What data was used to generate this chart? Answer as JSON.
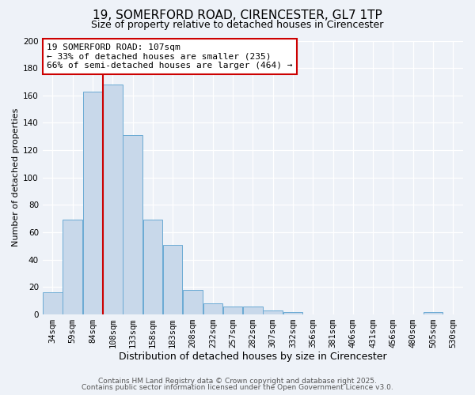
{
  "title": "19, SOMERFORD ROAD, CIRENCESTER, GL7 1TP",
  "subtitle": "Size of property relative to detached houses in Cirencester",
  "xlabel": "Distribution of detached houses by size in Cirencester",
  "ylabel": "Number of detached properties",
  "bar_labels": [
    "34sqm",
    "59sqm",
    "84sqm",
    "108sqm",
    "133sqm",
    "158sqm",
    "183sqm",
    "208sqm",
    "232sqm",
    "257sqm",
    "282sqm",
    "307sqm",
    "332sqm",
    "356sqm",
    "381sqm",
    "406sqm",
    "431sqm",
    "456sqm",
    "480sqm",
    "505sqm",
    "530sqm"
  ],
  "bar_values": [
    16,
    69,
    163,
    168,
    131,
    69,
    51,
    18,
    8,
    6,
    6,
    3,
    2,
    0,
    0,
    0,
    0,
    0,
    0,
    2,
    0
  ],
  "bar_color": "#c8d8ea",
  "bar_edge_color": "#6aaad4",
  "vline_x": 3.0,
  "vline_color": "#cc0000",
  "annotation_title": "19 SOMERFORD ROAD: 107sqm",
  "annotation_line1": "← 33% of detached houses are smaller (235)",
  "annotation_line2": "66% of semi-detached houses are larger (464) →",
  "annotation_box_color": "#ffffff",
  "annotation_box_edge": "#cc0000",
  "ylim": [
    0,
    200
  ],
  "yticks": [
    0,
    20,
    40,
    60,
    80,
    100,
    120,
    140,
    160,
    180,
    200
  ],
  "bg_color": "#eef2f8",
  "footer1": "Contains HM Land Registry data © Crown copyright and database right 2025.",
  "footer2": "Contains public sector information licensed under the Open Government Licence v3.0.",
  "title_fontsize": 11,
  "subtitle_fontsize": 9,
  "xlabel_fontsize": 9,
  "ylabel_fontsize": 8,
  "tick_fontsize": 7.5,
  "annotation_fontsize": 8,
  "footer_fontsize": 6.5
}
